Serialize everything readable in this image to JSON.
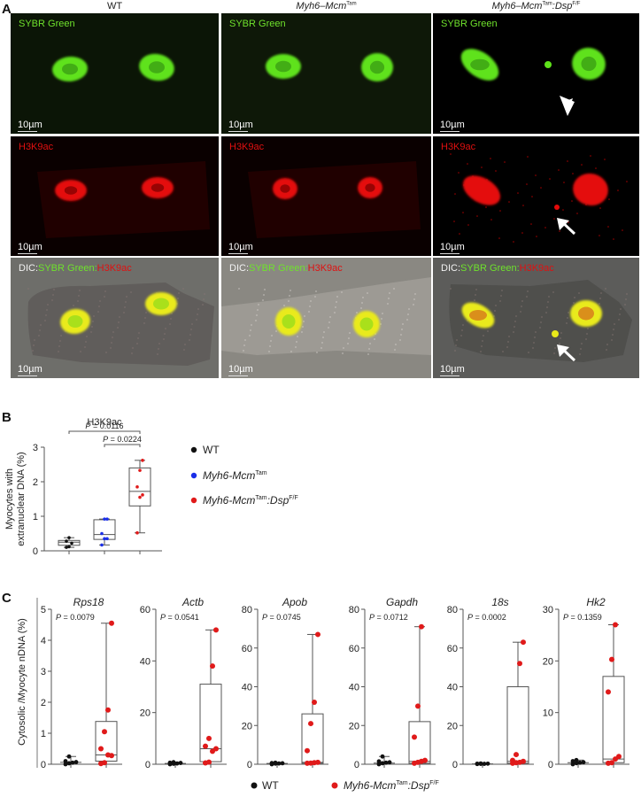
{
  "panel_a": {
    "letter": "A",
    "columns": [
      {
        "title": "WT",
        "title_italic": "",
        "title_sup": "",
        "title_suffix": "",
        "title_suffix_sup": ""
      },
      {
        "title": "",
        "title_italic": "Myh6–Mcm",
        "title_sup": "Tam",
        "title_suffix": "",
        "title_suffix_sup": ""
      },
      {
        "title": "",
        "title_italic": "Myh6–Mcm",
        "title_sup": "Tam",
        "title_suffix": ":Dsp",
        "title_suffix_sup": "F/F"
      }
    ],
    "rows": [
      {
        "label_parts": [
          {
            "text": "SYBR Green",
            "color": "#6fe22c"
          }
        ],
        "stain": "SYBR Green"
      },
      {
        "label_parts": [
          {
            "text": "H3K9ac",
            "color": "#e01010"
          }
        ],
        "stain": "H3K9ac"
      },
      {
        "label_parts": [
          {
            "text": "DIC:",
            "color": "#f2f2f2"
          },
          {
            "text": "SYBR Green:",
            "color": "#6fe22c"
          },
          {
            "text": "H3K9ac",
            "color": "#e01010"
          }
        ],
        "stain": "merge"
      }
    ],
    "scale_bar": "10µm",
    "annotations": {
      "arrowhead": "arrowhead-icon",
      "arrow": "arrow-icon"
    }
  },
  "panel_b": {
    "letter": "B"
  },
  "panel_c": {
    "letter": "C"
  },
  "chart_data": [
    {
      "type": "box",
      "panel": "B",
      "title": "H3K9ac",
      "ylabel": "Myocytes with extranuclear DNA (%)",
      "ylim": [
        0,
        3
      ],
      "yticks": [
        0,
        1,
        2,
        3
      ],
      "categories": [
        "WT",
        "Myh6-Mcm Tam",
        "Myh6-Mcm Tam:Dsp F/F"
      ],
      "series": [
        {
          "name": "WT",
          "color": "#111111",
          "min": 0.1,
          "q1": 0.16,
          "median": 0.25,
          "q3": 0.3,
          "max": 0.38,
          "points": [
            0.1,
            0.12,
            0.22,
            0.28,
            0.38
          ]
        },
        {
          "name": "Myh6-Mcm Tam",
          "color": "#1a2ee8",
          "min": 0.17,
          "q1": 0.33,
          "median": 0.47,
          "q3": 0.9,
          "max": 0.92,
          "points": [
            0.17,
            0.35,
            0.35,
            0.5,
            0.92,
            0.92
          ]
        },
        {
          "name": "Myh6-Mcm Tam:Dsp F/F",
          "color": "#e01a1a",
          "min": 0.52,
          "q1": 1.3,
          "median": 1.72,
          "q3": 2.4,
          "max": 2.62,
          "points": [
            0.52,
            1.55,
            1.62,
            1.85,
            2.33,
            2.62
          ]
        }
      ],
      "comparisons": [
        {
          "label": "P = 0.0116",
          "from": 0,
          "to": 2
        },
        {
          "label": "P = 0.0224",
          "from": 1,
          "to": 2
        }
      ],
      "legend": [
        {
          "label": "WT",
          "italic": "",
          "sup": "",
          "suffix": "",
          "suffix_sup": "",
          "color": "#111111"
        },
        {
          "label": "",
          "italic": "Myh6-Mcm",
          "sup": "Tam",
          "suffix": "",
          "suffix_sup": "",
          "color": "#1a2ee8"
        },
        {
          "label": "",
          "italic": "Myh6-Mcm",
          "sup": "Tam",
          "suffix": ":Dsp",
          "suffix_sup": "F/F",
          "color": "#e01a1a"
        }
      ],
      "legend_position": "right"
    },
    {
      "type": "box",
      "panel": "C",
      "ylabel": "Cytosolic /Myocyte nDNA (%)",
      "categories": [
        "WT",
        "Myh6-Mcm Tam:Dsp F/F"
      ],
      "legend": [
        {
          "label": "WT",
          "color": "#111111"
        },
        {
          "label": "Myh6-Mcm Tam:Dsp F/F",
          "color": "#e01a1a"
        }
      ],
      "legend_position": "bottom",
      "subplots": [
        {
          "title": "Rps18",
          "p_value": "P = 0.0079",
          "ylim": [
            0,
            5
          ],
          "yticks": [
            0,
            1,
            2,
            3,
            4,
            5
          ],
          "wt": {
            "min": 0,
            "q1": 0.02,
            "median": 0.06,
            "q3": 0.12,
            "max": 0.25,
            "points": [
              0,
              0.03,
              0.05,
              0.07,
              0.1,
              0.25
            ]
          },
          "ko": {
            "min": 0,
            "q1": 0.1,
            "median": 0.3,
            "q3": 1.38,
            "max": 4.55,
            "points": [
              0.02,
              0.05,
              0.3,
              0.28,
              0.5,
              1.05,
              1.75,
              4.55
            ]
          }
        },
        {
          "title": "Actb",
          "p_value": "P = 0.0541",
          "ylim": [
            0,
            60
          ],
          "yticks": [
            0,
            20,
            40,
            60
          ],
          "wt": {
            "min": 0,
            "q1": 0.1,
            "median": 0.3,
            "q3": 0.5,
            "max": 0.8,
            "points": [
              0,
              0.2,
              0.3,
              0.5,
              0.6,
              0.8
            ]
          },
          "ko": {
            "min": 0,
            "q1": 1,
            "median": 6,
            "q3": 31,
            "max": 52,
            "points": [
              0.5,
              0.8,
              5,
              6,
              7,
              10,
              38,
              52
            ]
          }
        },
        {
          "title": "Apob",
          "p_value": "P = 0.0745",
          "ylim": [
            0,
            80
          ],
          "yticks": [
            0,
            20,
            40,
            60,
            80
          ],
          "wt": {
            "min": 0,
            "q1": 0.2,
            "median": 0.4,
            "q3": 0.6,
            "max": 0.8,
            "points": [
              0,
              0.3,
              0.4,
              0.5,
              0.6,
              0.8
            ]
          },
          "ko": {
            "min": 0,
            "q1": 0.5,
            "median": 1,
            "q3": 26,
            "max": 67,
            "points": [
              0.5,
              0.6,
              0.8,
              1,
              7,
              21,
              32,
              67
            ]
          }
        },
        {
          "title": "Gapdh",
          "p_value": "P = 0.0712",
          "ylim": [
            0,
            80
          ],
          "yticks": [
            0,
            20,
            40,
            60,
            80
          ],
          "wt": {
            "min": 0,
            "q1": 0.2,
            "median": 0.6,
            "q3": 1.2,
            "max": 4,
            "points": [
              0,
              0.5,
              0.8,
              1,
              1.5,
              4
            ]
          },
          "ko": {
            "min": 0,
            "q1": 0.5,
            "median": 1.5,
            "q3": 22,
            "max": 71,
            "points": [
              0.5,
              1,
              1.5,
              2,
              14,
              30,
              71
            ]
          }
        },
        {
          "title": "18s",
          "p_value": "P = 0.0002",
          "ylim": [
            0,
            80
          ],
          "yticks": [
            0,
            20,
            40,
            60,
            80
          ],
          "wt": {
            "min": 0,
            "q1": 0.1,
            "median": 0.2,
            "q3": 0.3,
            "max": 0.4,
            "points": [
              0.1,
              0.2,
              0.2,
              0.3,
              0.3,
              0.4
            ]
          },
          "ko": {
            "min": 0,
            "q1": 0.5,
            "median": 1.5,
            "q3": 40,
            "max": 63,
            "points": [
              0.5,
              0.8,
              1,
              1.5,
              2,
              5,
              52,
              63
            ]
          }
        },
        {
          "title": "Hk2",
          "p_value": "P = 0.1359",
          "ylim": [
            0,
            30
          ],
          "yticks": [
            0,
            10,
            20,
            30
          ],
          "wt": {
            "min": 0,
            "q1": 0.1,
            "median": 0.3,
            "q3": 0.5,
            "max": 0.8,
            "points": [
              0,
              0.2,
              0.3,
              0.4,
              0.6,
              0.8
            ]
          },
          "ko": {
            "min": 0,
            "q1": 0.3,
            "median": 1,
            "q3": 17,
            "max": 27,
            "points": [
              0.2,
              0.3,
              1,
              1.5,
              14,
              20.3,
              27
            ]
          }
        }
      ]
    }
  ]
}
